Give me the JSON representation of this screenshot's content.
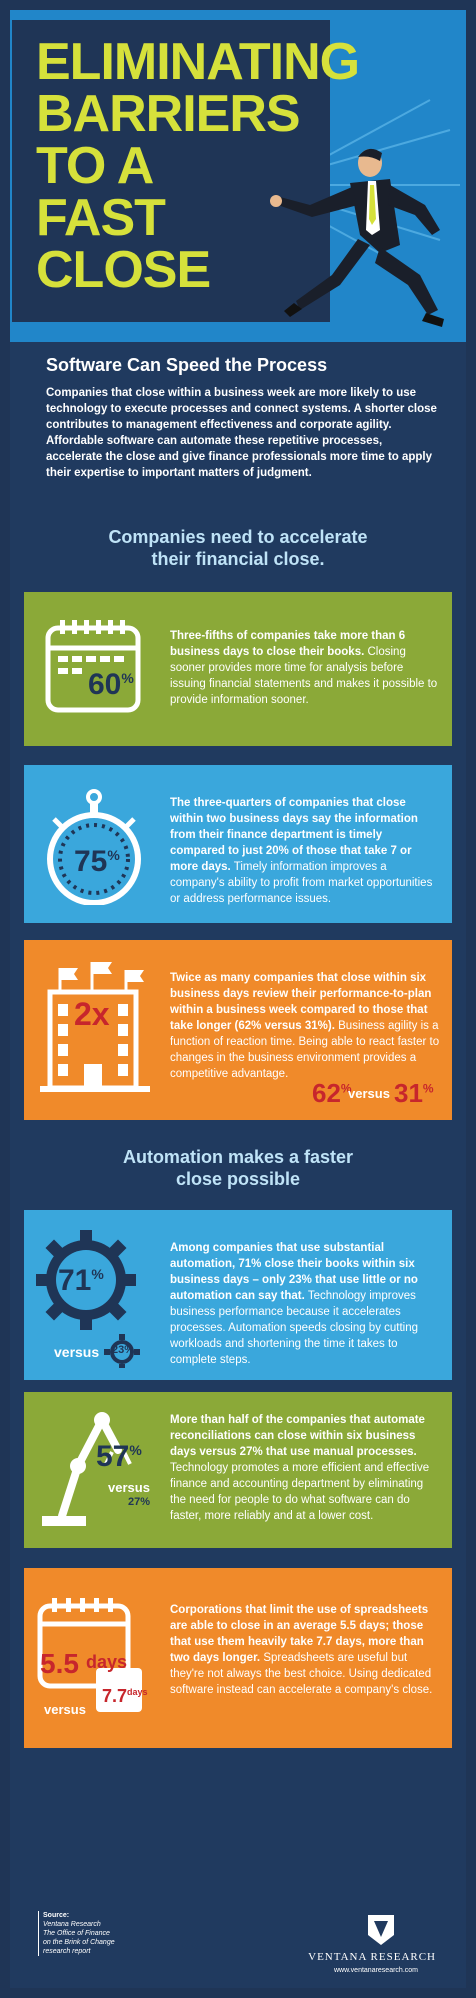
{
  "hero": {
    "title_line1": "ELIMINATING",
    "title_line2": "BARRIERS",
    "title_line3": "TO A",
    "title_line4": "FAST",
    "title_line5": "CLOSE"
  },
  "speed": {
    "title": "Software Can Speed the Process",
    "body": "Companies that close within a business week are more likely to use technology to execute processes and connect systems. A shorter close contributes to management effectiveness and corporate agility. Affordable software can automate these repetitive processes, accelerate the close and give finance professionals more time to apply their expertise to important matters of judgment."
  },
  "headings": {
    "h1_line1": "Companies need to accelerate",
    "h1_line2": "their financial close.",
    "h2_line1": "Automation makes a faster",
    "h2_line2": "close possible"
  },
  "panels": [
    {
      "stat": "60",
      "stat_unit": "%",
      "bold": "Three-fifths of companies take more than 6 business days to close their books.",
      "text": "Closing sooner provides more time for analysis before issuing financial statements and makes it possible to provide information sooner."
    },
    {
      "stat": "75",
      "stat_unit": "%",
      "bold": "The three-quarters of companies that close within two business days say the information from their finance department is timely compared to just 20% of those that take 7 or more days.",
      "text": "Timely information improves a company's ability to profit from market opportunities or address performance issues."
    },
    {
      "stat": "2x",
      "bold": "Twice as many companies that close within six business days review their performance-to-plan within a business week compared to those that take longer (62% versus 31%).",
      "text": "Business agility is a function of reaction time. Being able to react faster to changes in the business environment provides a competitive advantage.",
      "compare_a": "62",
      "compare_b": "31",
      "compare_unit": "%",
      "versus": "versus"
    },
    {
      "stat": "71",
      "stat_unit": "%",
      "versus": "versus",
      "compare": "23%",
      "bold": "Among companies that use substantial automation, 71% close their books within six business days – only 23% that use little or no automation can say that.",
      "text": "Technology improves business performance because it accelerates processes. Automation speeds closing by cutting workloads and shortening the time it takes to complete steps."
    },
    {
      "stat": "57",
      "stat_unit": "%",
      "versus": "versus",
      "compare": "27%",
      "bold": "More than half of the companies that automate reconciliations can close within six business days versus 27% that use manual processes.",
      "text": "Technology promotes a more efficient and effective finance and accounting department by eliminating the need for people to do what software can do faster, more reliably and at a lower cost."
    },
    {
      "stat": "5.5",
      "stat_unit": "days",
      "versus": "versus",
      "compare": "7.7",
      "compare_unit": "days",
      "bold": "Corporations that limit the use of spreadsheets are able to close in an average 5.5 days; those that use them heavily take 7.7 days, more than two days longer.",
      "text": "Spreadsheets are useful but they're not always the best choice. Using dedicated software instead can accelerate a company's close."
    }
  ],
  "footer": {
    "source_label": "Source:",
    "source_line1": "Ventana Research",
    "source_line2": "The Office of Finance",
    "source_line3": "on the Brink of Change",
    "source_line4": "research report",
    "brand": "VENTANA RESEARCH",
    "url": "www.ventanaresearch.com"
  },
  "colors": {
    "navy": "#1f3556",
    "accent_yellow": "#d6e13b",
    "green_panel": "#8ba938",
    "blue_panel": "#3aa7dc",
    "orange_panel": "#f08a2a",
    "stat_red": "#c7262c"
  }
}
